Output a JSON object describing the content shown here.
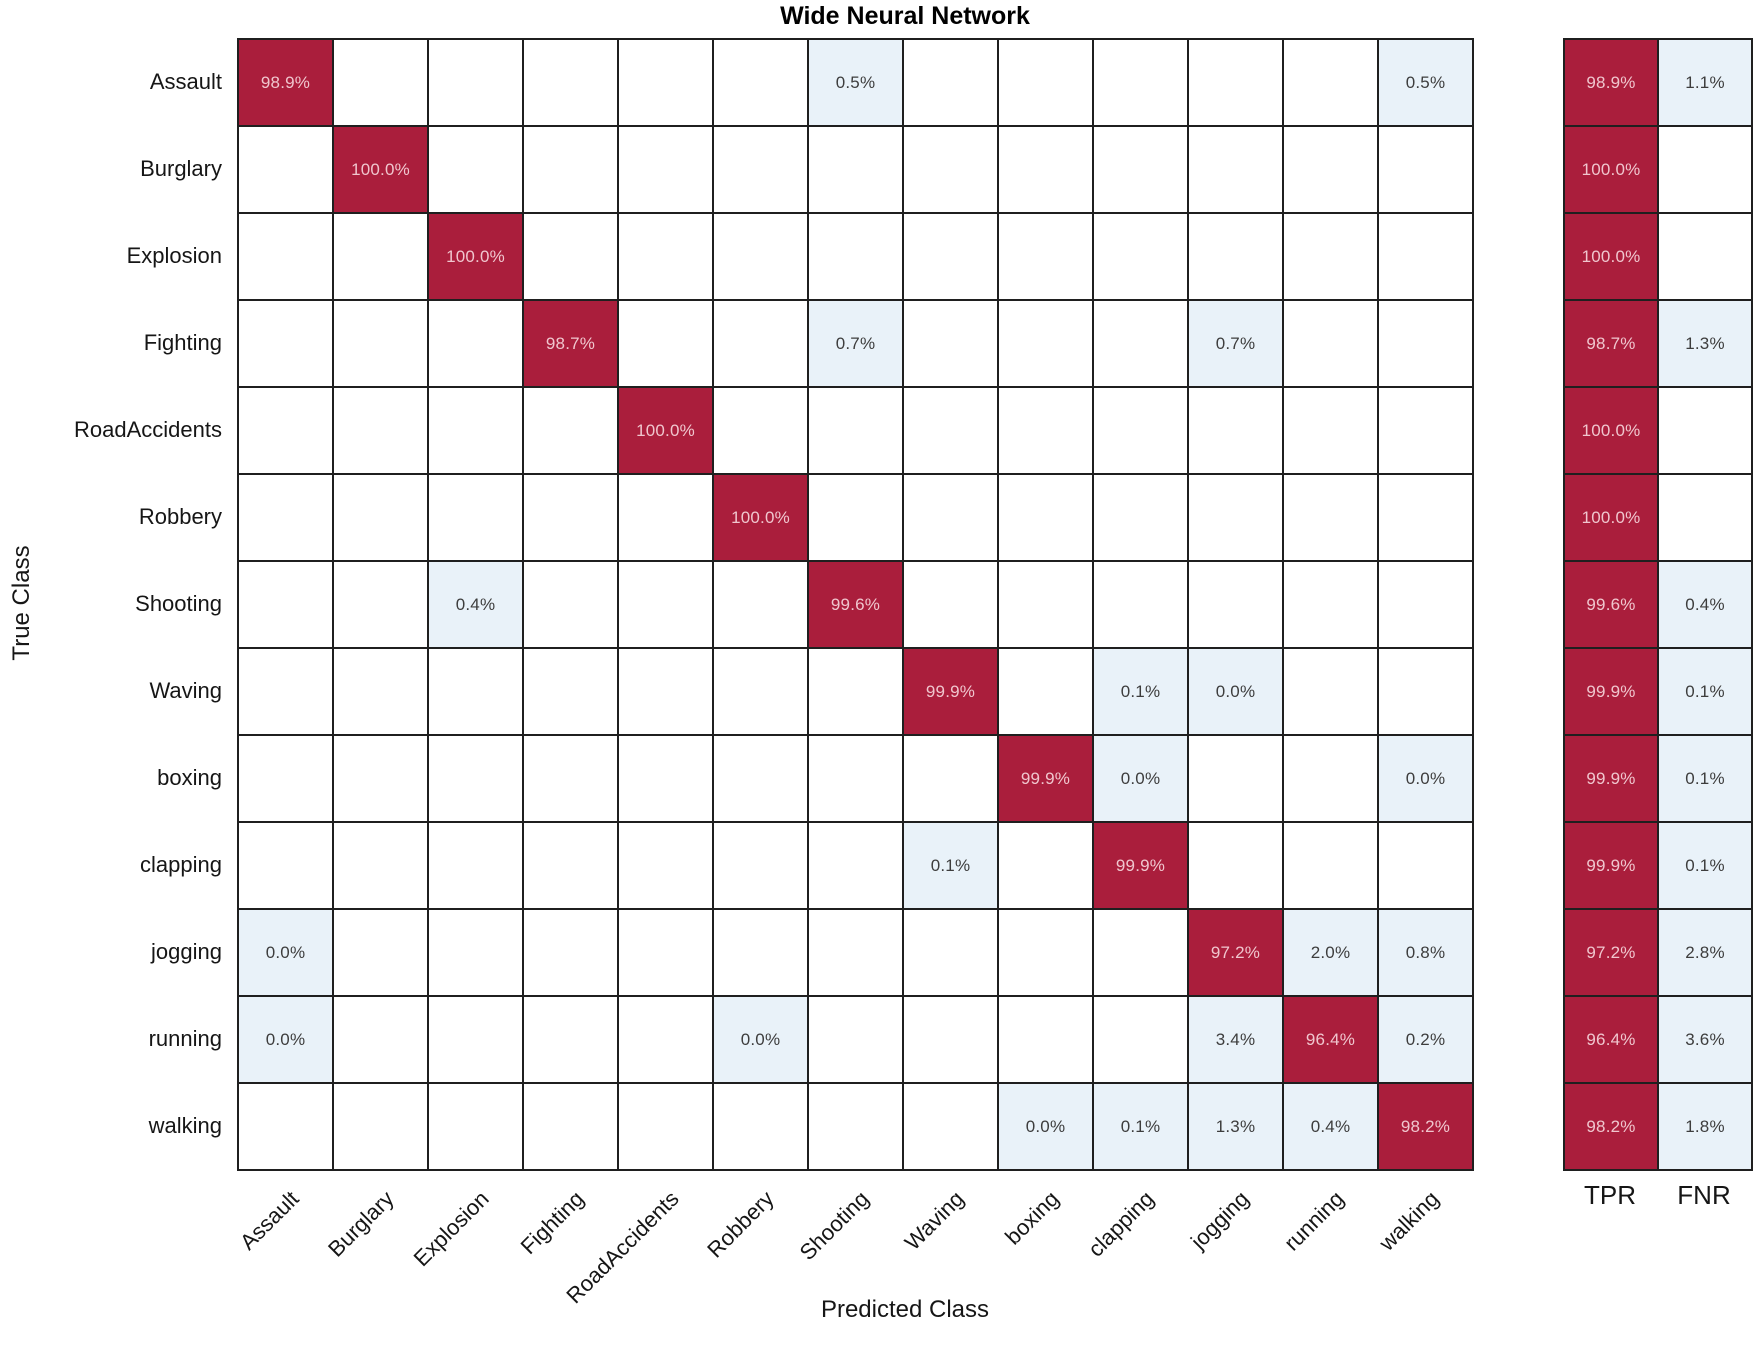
{
  "title": "Wide Neural Network",
  "xlabel": "Predicted Class",
  "ylabel": "True Class",
  "summary_headers": {
    "tpr": "TPR",
    "fnr": "FNR"
  },
  "colors": {
    "diagonal_bg": "#AA1E3C",
    "diagonal_text": "#F0C6CE",
    "offdiag_bg": "#E9F2F9",
    "offdiag_text": "#3D3D3D",
    "grid_line": "#1F1F1F"
  },
  "chart_data": {
    "type": "heatmap",
    "subtype": "confusion-matrix",
    "title": "Wide Neural Network",
    "xlabel": "Predicted Class",
    "ylabel": "True Class",
    "classes": [
      "Assault",
      "Burglary",
      "Explosion",
      "Fighting",
      "RoadAccidents",
      "Robbery",
      "Shooting",
      "Waving",
      "boxing",
      "clapping",
      "jogging",
      "running",
      "walking"
    ],
    "matrix": [
      [
        "98.9%",
        "",
        "",
        "",
        "",
        "",
        "0.5%",
        "",
        "",
        "",
        "",
        "",
        "0.5%"
      ],
      [
        "",
        "100.0%",
        "",
        "",
        "",
        "",
        "",
        "",
        "",
        "",
        "",
        "",
        ""
      ],
      [
        "",
        "",
        "100.0%",
        "",
        "",
        "",
        "",
        "",
        "",
        "",
        "",
        "",
        ""
      ],
      [
        "",
        "",
        "",
        "98.7%",
        "",
        "",
        "0.7%",
        "",
        "",
        "",
        "0.7%",
        "",
        ""
      ],
      [
        "",
        "",
        "",
        "",
        "100.0%",
        "",
        "",
        "",
        "",
        "",
        "",
        "",
        ""
      ],
      [
        "",
        "",
        "",
        "",
        "",
        "100.0%",
        "",
        "",
        "",
        "",
        "",
        "",
        ""
      ],
      [
        "",
        "",
        "0.4%",
        "",
        "",
        "",
        "99.6%",
        "",
        "",
        "",
        "",
        "",
        ""
      ],
      [
        "",
        "",
        "",
        "",
        "",
        "",
        "",
        "99.9%",
        "",
        "0.1%",
        "0.0%",
        "",
        ""
      ],
      [
        "",
        "",
        "",
        "",
        "",
        "",
        "",
        "",
        "99.9%",
        "0.0%",
        "",
        "",
        "0.0%"
      ],
      [
        "",
        "",
        "",
        "",
        "",
        "",
        "",
        "0.1%",
        "",
        "99.9%",
        "",
        "",
        ""
      ],
      [
        "0.0%",
        "",
        "",
        "",
        "",
        "",
        "",
        "",
        "",
        "",
        "97.2%",
        "2.0%",
        "0.8%"
      ],
      [
        "0.0%",
        "",
        "",
        "",
        "",
        "0.0%",
        "",
        "",
        "",
        "",
        "3.4%",
        "96.4%",
        "0.2%"
      ],
      [
        "",
        "",
        "",
        "",
        "",
        "",
        "",
        "",
        "0.0%",
        "0.1%",
        "1.3%",
        "0.4%",
        "98.2%"
      ]
    ],
    "tpr": [
      "98.9%",
      "100.0%",
      "100.0%",
      "98.7%",
      "100.0%",
      "100.0%",
      "99.6%",
      "99.9%",
      "99.9%",
      "99.9%",
      "97.2%",
      "96.4%",
      "98.2%"
    ],
    "fnr": [
      "1.1%",
      "",
      "",
      "1.3%",
      "",
      "",
      "0.4%",
      "0.1%",
      "0.1%",
      "0.1%",
      "2.8%",
      "3.6%",
      "1.8%"
    ],
    "legend_position": "right-summary-columns",
    "grid": true
  }
}
